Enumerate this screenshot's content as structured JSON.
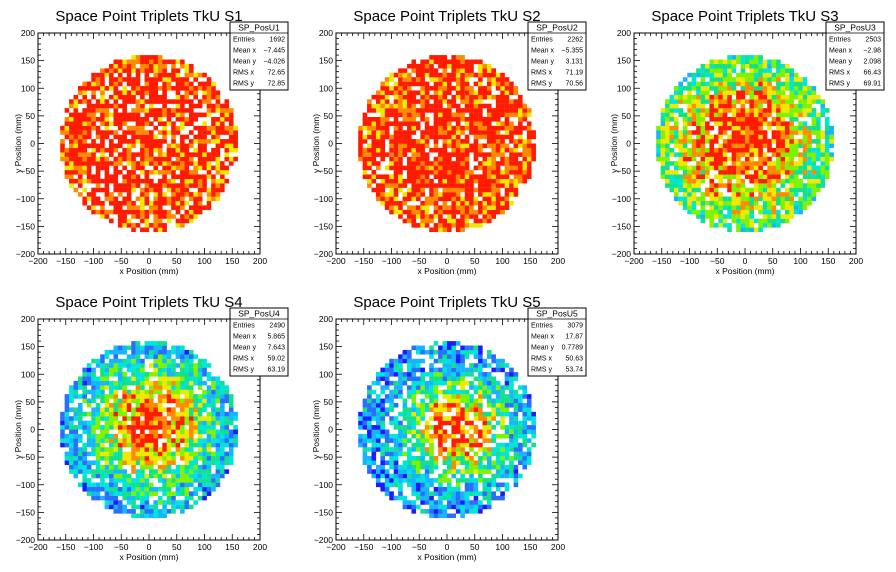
{
  "chart_data": [
    {
      "type": "heatmap",
      "title": "Space Point Triplets TkU S1",
      "xlabel": "x Position (mm)",
      "ylabel": "y Position (mm)",
      "xlim": [
        -200,
        200
      ],
      "ylim": [
        -200,
        200
      ],
      "x_ticks": [
        "-200",
        "-150",
        "-100",
        "-50",
        "0",
        "50",
        "100",
        "150",
        "200"
      ],
      "y_ticks": [
        "-200",
        "-150",
        "-100",
        "-50",
        "0",
        "50",
        "100",
        "150",
        "200"
      ],
      "distribution": {
        "radius_mm": 160,
        "center_x": -7,
        "center_y": -4,
        "sigma": 400,
        "fill": 0.78,
        "hot_spots": [
          [
            15,
            60
          ],
          [
            -60,
            5
          ],
          [
            -40,
            -45
          ]
        ],
        "seed": 11
      },
      "stats": {
        "name": "SP_PosU1",
        "rows": [
          {
            "label": "Entries",
            "value": "1692"
          },
          {
            "label": "Mean x",
            "value": "−7.445"
          },
          {
            "label": "Mean y",
            "value": "−4.026"
          },
          {
            "label": "RMS x",
            "value": "72.65"
          },
          {
            "label": "RMS y",
            "value": "72.85"
          }
        ]
      }
    },
    {
      "type": "heatmap",
      "title": "Space Point Triplets TkU S2",
      "xlabel": "x Position (mm)",
      "ylabel": "y Position (mm)",
      "xlim": [
        -200,
        200
      ],
      "ylim": [
        -200,
        200
      ],
      "x_ticks": [
        "-200",
        "-150",
        "-100",
        "-50",
        "0",
        "50",
        "100",
        "150",
        "200"
      ],
      "y_ticks": [
        "-200",
        "-150",
        "-100",
        "-50",
        "0",
        "50",
        "100",
        "150",
        "200"
      ],
      "distribution": {
        "radius_mm": 160,
        "center_x": -5,
        "center_y": 3,
        "sigma": 400,
        "fill": 0.84,
        "hot_spots": [
          [
            -35,
            30
          ],
          [
            0,
            45
          ],
          [
            30,
            60
          ]
        ],
        "seed": 23
      },
      "stats": {
        "name": "SP_PosU2",
        "rows": [
          {
            "label": "Entries",
            "value": "2262"
          },
          {
            "label": "Mean x",
            "value": "−5.355"
          },
          {
            "label": "Mean y",
            "value": "3.131"
          },
          {
            "label": "RMS x",
            "value": "71.19"
          },
          {
            "label": "RMS y",
            "value": "70.56"
          }
        ]
      }
    },
    {
      "type": "heatmap",
      "title": "Space Point Triplets TkU S3",
      "xlabel": "x Position (mm)",
      "ylabel": "y Position (mm)",
      "xlim": [
        -200,
        200
      ],
      "ylim": [
        -200,
        200
      ],
      "x_ticks": [
        "-200",
        "-150",
        "-100",
        "-50",
        "0",
        "50",
        "100",
        "150",
        "200"
      ],
      "y_ticks": [
        "-200",
        "-150",
        "-100",
        "-50",
        "0",
        "50",
        "100",
        "150",
        "200"
      ],
      "distribution": {
        "radius_mm": 160,
        "center_x": -3,
        "center_y": 2,
        "sigma": 110,
        "fill": 0.88,
        "hot_spots": [
          [
            25,
            0
          ],
          [
            -15,
            20
          ],
          [
            -50,
            -35
          ]
        ],
        "seed": 37
      },
      "stats": {
        "name": "SP_PosU3",
        "rows": [
          {
            "label": "Entries",
            "value": "2503"
          },
          {
            "label": "Mean x",
            "value": "−2.98"
          },
          {
            "label": "Mean y",
            "value": "2.098"
          },
          {
            "label": "RMS x",
            "value": "66.43"
          },
          {
            "label": "RMS y",
            "value": "69.91"
          }
        ]
      }
    },
    {
      "type": "heatmap",
      "title": "Space Point Triplets TkU S4",
      "xlabel": "x Position (mm)",
      "ylabel": "y Position (mm)",
      "xlim": [
        -200,
        200
      ],
      "ylim": [
        -200,
        200
      ],
      "x_ticks": [
        "-200",
        "-150",
        "-100",
        "-50",
        "0",
        "50",
        "100",
        "150",
        "200"
      ],
      "y_ticks": [
        "-200",
        "-150",
        "-100",
        "-50",
        "0",
        "50",
        "100",
        "150",
        "200"
      ],
      "distribution": {
        "radius_mm": 160,
        "center_x": 6,
        "center_y": 8,
        "sigma": 72,
        "fill": 0.85,
        "hot_spots": [
          [
            40,
            45
          ],
          [
            20,
            10
          ]
        ],
        "seed": 53
      },
      "stats": {
        "name": "SP_PosU4",
        "rows": [
          {
            "label": "Entries",
            "value": "2490"
          },
          {
            "label": "Mean x",
            "value": "5.865"
          },
          {
            "label": "Mean y",
            "value": "7.643"
          },
          {
            "label": "RMS x",
            "value": "59.02"
          },
          {
            "label": "RMS y",
            "value": "63.19"
          }
        ]
      }
    },
    {
      "type": "heatmap",
      "title": "Space Point Triplets TkU S5",
      "xlabel": "x Position (mm)",
      "ylabel": "y Position (mm)",
      "xlim": [
        -200,
        200
      ],
      "ylim": [
        -200,
        200
      ],
      "x_ticks": [
        "-200",
        "-150",
        "-100",
        "-50",
        "0",
        "50",
        "100",
        "150",
        "200"
      ],
      "y_ticks": [
        "-200",
        "-150",
        "-100",
        "-50",
        "0",
        "50",
        "100",
        "150",
        "200"
      ],
      "distribution": {
        "radius_mm": 160,
        "center_x": 18,
        "center_y": 1,
        "sigma": 58,
        "fill": 0.8,
        "hot_spots": [
          [
            0,
            5
          ],
          [
            10,
            3
          ],
          [
            25,
            -20
          ]
        ],
        "seed": 71
      },
      "stats": {
        "name": "SP_PosU5",
        "rows": [
          {
            "label": "Entries",
            "value": "3079"
          },
          {
            "label": "Mean x",
            "value": "17.87"
          },
          {
            "label": "Mean y",
            "value": "0.7789"
          },
          {
            "label": "RMS x",
            "value": "50.63"
          },
          {
            "label": "RMS y",
            "value": "53.74"
          }
        ]
      }
    }
  ],
  "colors": {
    "palette": [
      "#1b1bff",
      "#2a6dff",
      "#17b5ff",
      "#00e6d6",
      "#13e08a",
      "#7ff200",
      "#f0e800",
      "#ff8a00",
      "#ff1a00"
    ],
    "axis": "#000000",
    "background": "#ffffff"
  }
}
